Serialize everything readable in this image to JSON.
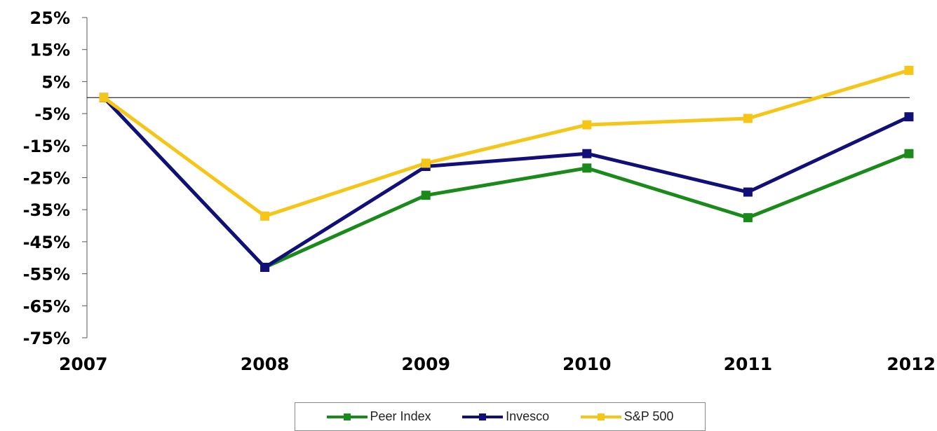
{
  "chart_data": {
    "type": "line",
    "categories": [
      "2007",
      "2008",
      "2009",
      "2010",
      "2011",
      "2012"
    ],
    "series": [
      {
        "name": "Peer Index",
        "color": "#1a8a1a",
        "values": [
          0,
          -53,
          -30.5,
          -22,
          -37.5,
          -17.5
        ]
      },
      {
        "name": "Invesco",
        "color": "#101078",
        "values": [
          0,
          -53,
          -21.5,
          -17.5,
          -29.5,
          -6
        ]
      },
      {
        "name": "S&P 500",
        "color": "#f5c518",
        "values": [
          0,
          -37,
          -20.5,
          -8.5,
          -6.5,
          8.5
        ]
      }
    ],
    "ylim": [
      -75,
      25
    ],
    "yticks": [
      25,
      15,
      5,
      -5,
      -15,
      -25,
      -35,
      -45,
      -55,
      -65,
      -75
    ],
    "ytick_labels": [
      "25%",
      "15%",
      "5%",
      "-5%",
      "-15%",
      "-25%",
      "-35%",
      "-45%",
      "-55%",
      "-65%",
      "-75%"
    ],
    "baseline": 0,
    "legend_position": "bottom-center",
    "grid": false
  }
}
